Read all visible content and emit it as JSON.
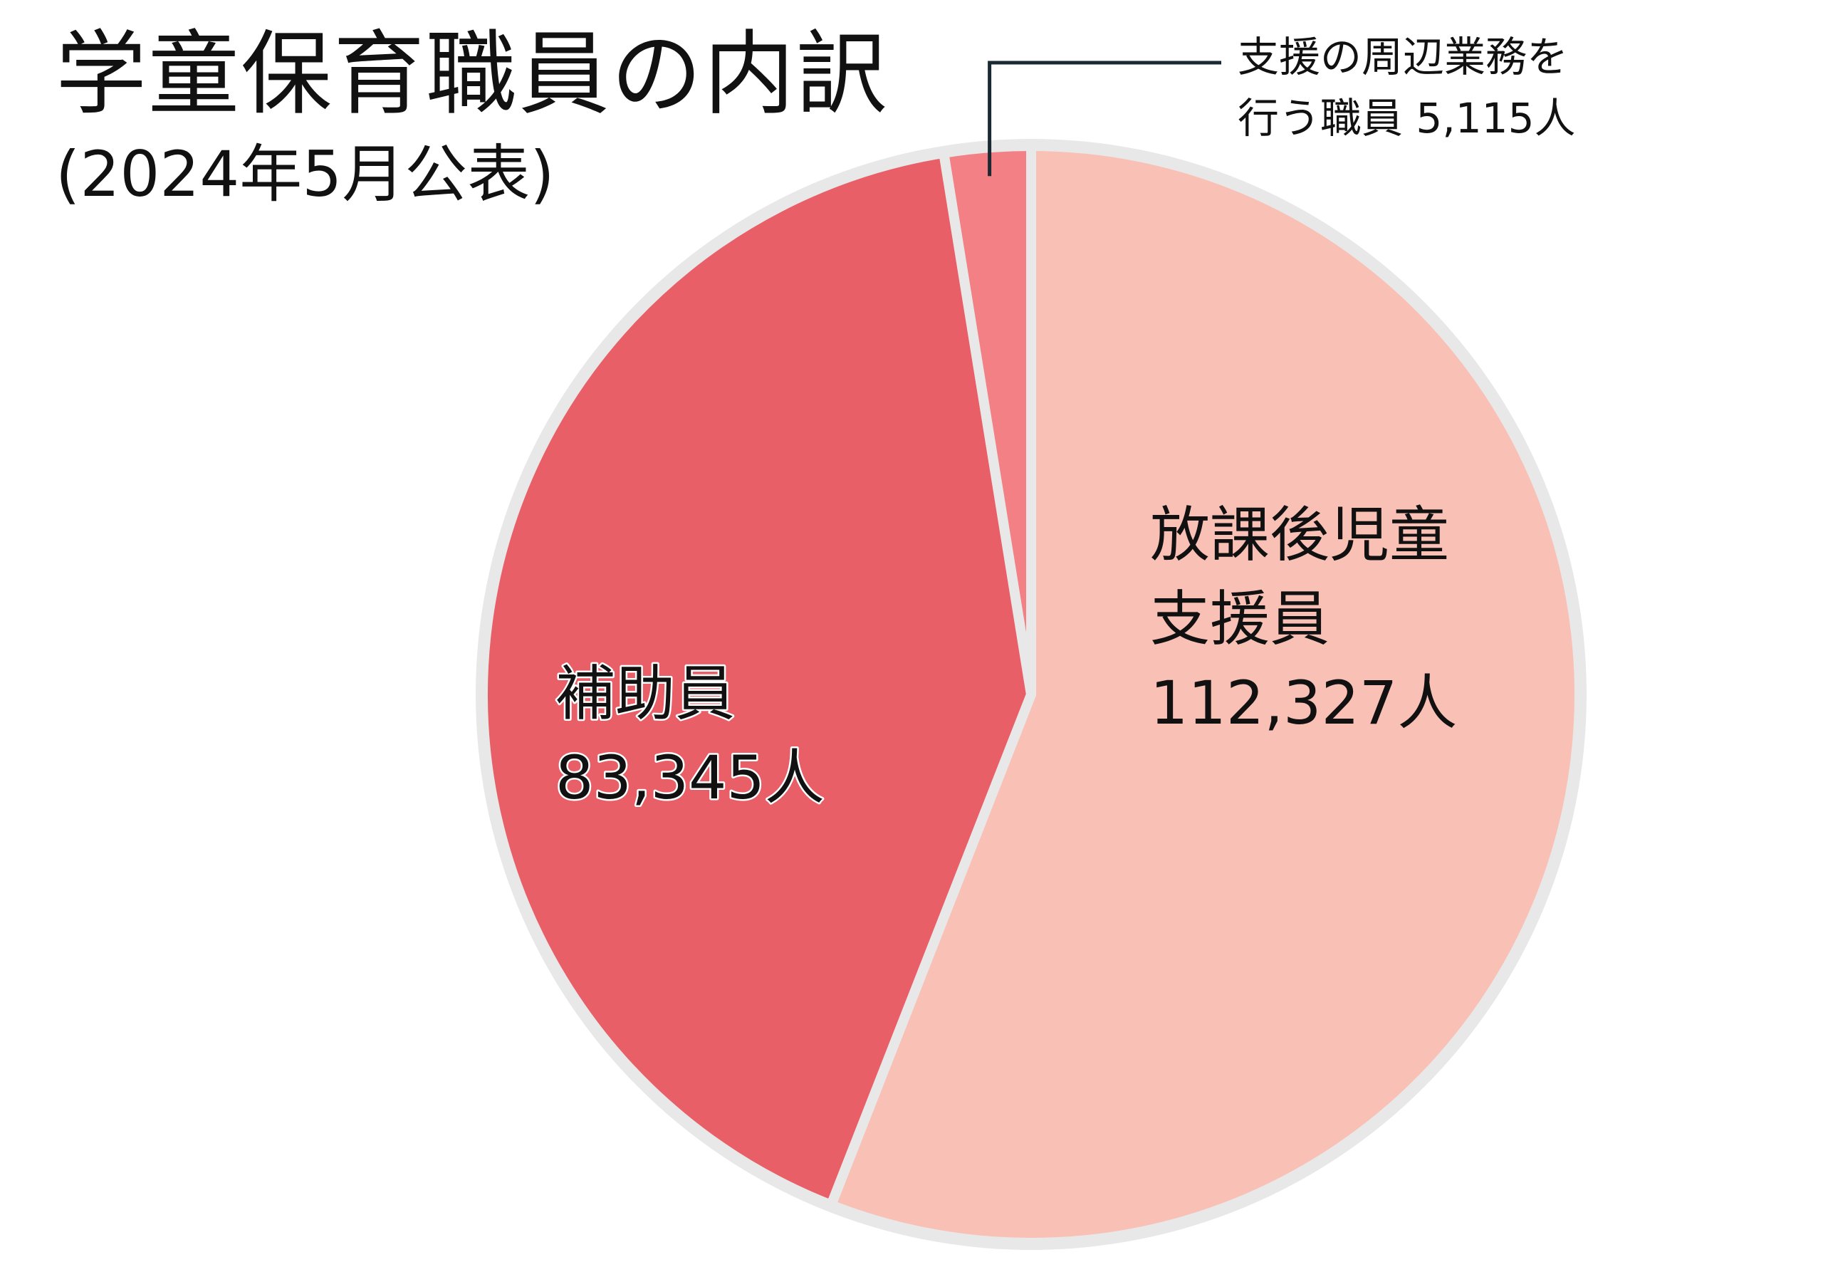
{
  "title": "学童保育職員の内訳",
  "subtitle": "(2024年5月公表)",
  "chart_data": {
    "type": "pie",
    "title": "学童保育職員の内訳",
    "subtitle": "(2024年5月公表)",
    "start_angle_deg": 0,
    "direction": "clockwise",
    "slices": [
      {
        "label": [
          "放課後児童",
          "支援員"
        ],
        "value": 112327,
        "value_label": "112,327人",
        "color": "#f9c0b5"
      },
      {
        "label": [
          "補助員"
        ],
        "value": 83345,
        "value_label": "83,345人",
        "color": "#e85f67"
      },
      {
        "label": [
          "支援の周辺業務を",
          "行う職員"
        ],
        "value": 5115,
        "value_label": "5,115人",
        "color": "#f28084"
      }
    ],
    "rim_color": "#e8e8e8",
    "separator_color": "#e8e8e8",
    "callout_line_color": "#1a2a33"
  }
}
